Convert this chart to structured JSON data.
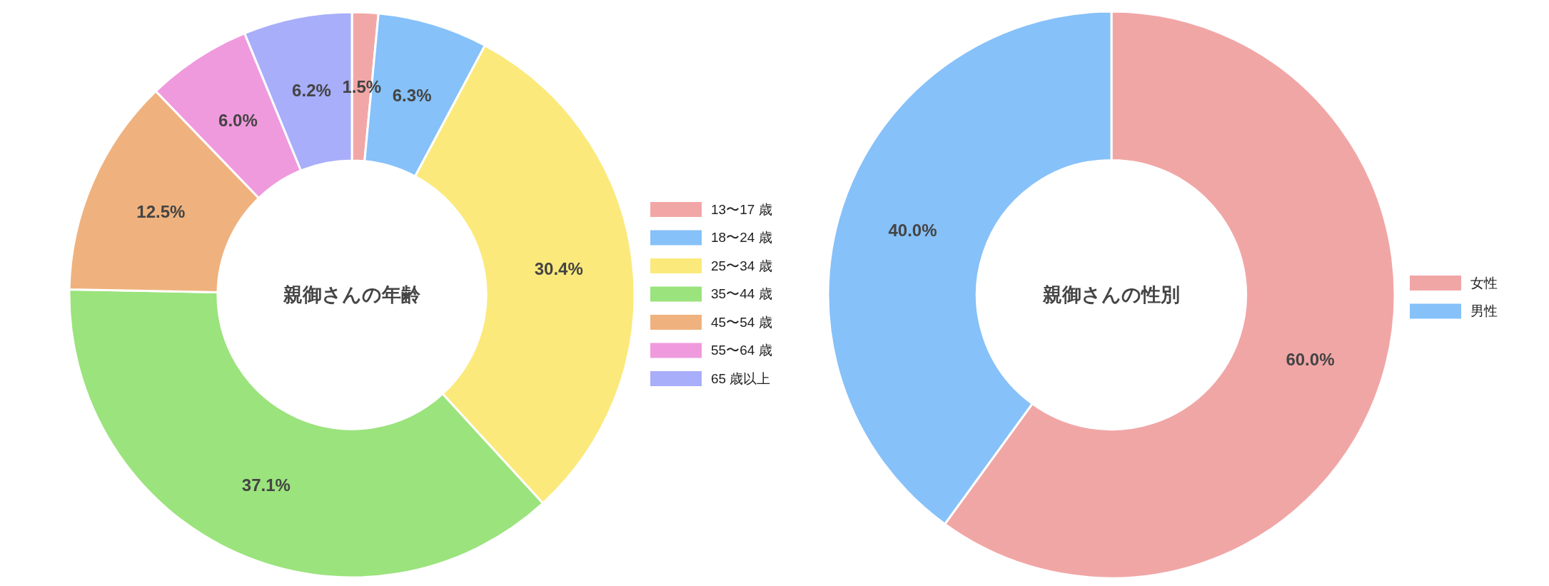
{
  "chart_data": [
    {
      "type": "donut",
      "title": "親御さんの年齢",
      "categories": [
        "13〜17 歳",
        "18〜24 歳",
        "25〜34 歳",
        "35〜44 歳",
        "45〜54 歳",
        "55〜64 歳",
        "65 歳以上"
      ],
      "values": [
        1.5,
        6.3,
        30.4,
        37.1,
        12.5,
        6.0,
        6.2
      ],
      "value_labels": [
        "1.5%",
        "6.3%",
        "30.4%",
        "37.1%",
        "12.5%",
        "6.0%",
        "6.2%"
      ],
      "colors": [
        "#f2a7a7",
        "#86c1f9",
        "#fbe97c",
        "#9be37d",
        "#efb27e",
        "#f09ade",
        "#a8aef9"
      ],
      "legend": "right"
    },
    {
      "type": "donut",
      "title": "親御さんの性別",
      "categories": [
        "女性",
        "男性"
      ],
      "values": [
        60.0,
        40.0
      ],
      "value_labels": [
        "60.0%",
        "40.0%"
      ],
      "colors": [
        "#f1a6a6",
        "#86c1f9"
      ],
      "legend": "right"
    }
  ]
}
